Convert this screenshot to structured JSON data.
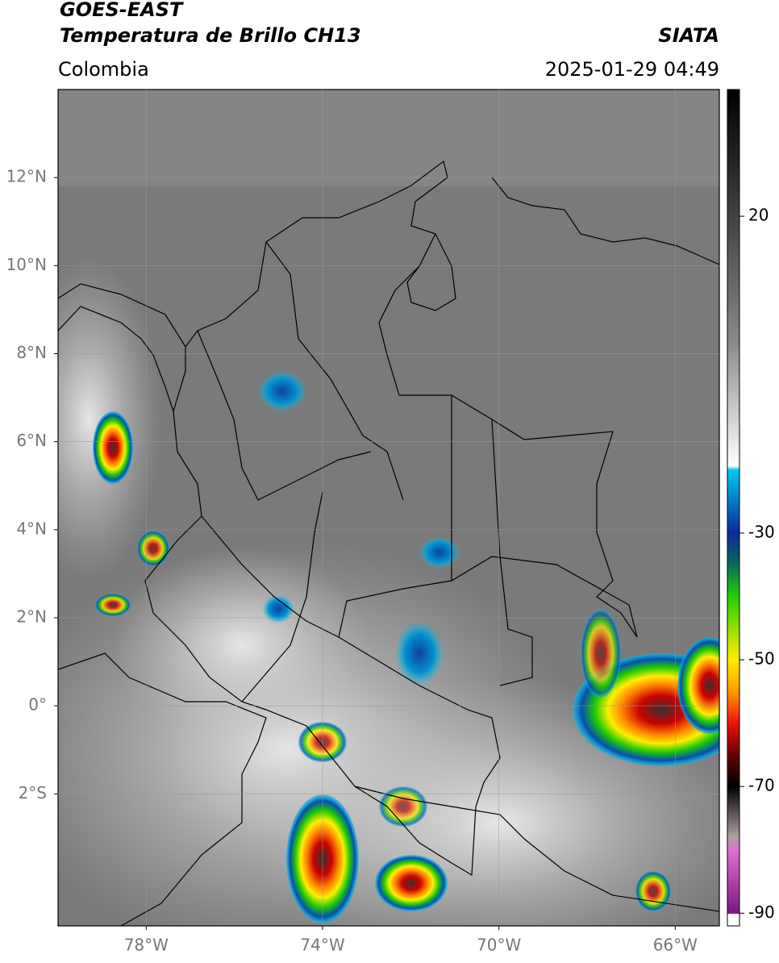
{
  "header": {
    "satellite": "GOES-EAST",
    "product": "Temperatura de Brillo CH13",
    "source": "SIATA",
    "region": "Colombia",
    "timestamp": "2025-01-29 04:49"
  },
  "map": {
    "lonlim": [
      -80,
      -65
    ],
    "latlim": [
      -5,
      14
    ],
    "lat_ticks": [
      {
        "value": 12,
        "label": "12°N"
      },
      {
        "value": 10,
        "label": "10°N"
      },
      {
        "value": 8,
        "label": "8°N"
      },
      {
        "value": 6,
        "label": "6°N"
      },
      {
        "value": 4,
        "label": "4°N"
      },
      {
        "value": 2,
        "label": "2°N"
      },
      {
        "value": 0,
        "label": "0°"
      },
      {
        "value": -2,
        "label": "2°S"
      }
    ],
    "lon_ticks": [
      {
        "value": -78,
        "label": "78°W"
      },
      {
        "value": -74,
        "label": "74°W"
      },
      {
        "value": -70,
        "label": "70°W"
      },
      {
        "value": -66,
        "label": "66°W"
      }
    ],
    "grid": true
  },
  "colorbar": {
    "clim": [
      -92,
      40
    ],
    "ticks": [
      20,
      -30,
      -50,
      -70,
      -90
    ]
  }
}
